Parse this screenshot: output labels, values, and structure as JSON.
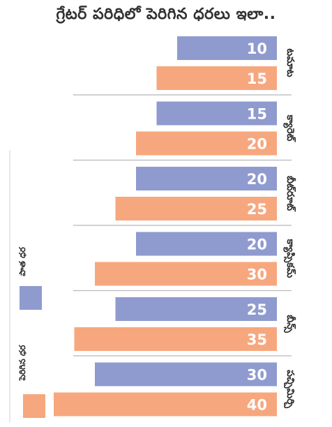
{
  "chart_data": {
    "type": "bar",
    "title": "గ్రేటర్ పరిధిలో పెరిగిన ధరలు ఇలా..",
    "categories": [
      "టమాట",
      "క్యారెట్",
      "బీట్‌రూట్",
      "క్యాప్సికమ్",
      "బీన్స్",
      "పచ్చిమిర్చి"
    ],
    "series": [
      {
        "name": "పాత ధర",
        "values": [
          10,
          15,
          20,
          20,
          25,
          30
        ],
        "color": "#8f9bcf"
      },
      {
        "name": "పెరిగిన ధర",
        "values": [
          15,
          20,
          25,
          30,
          35,
          40
        ],
        "color": "#f7a77e"
      }
    ],
    "orientation": "horizontal",
    "bars_extend": "right-to-left",
    "legend": "left"
  }
}
